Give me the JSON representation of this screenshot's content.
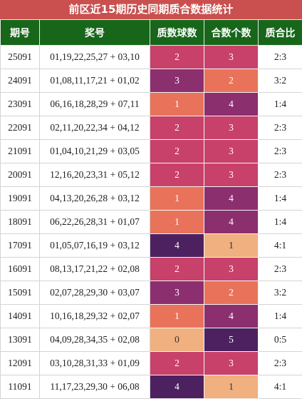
{
  "title": "前区近15期历史同期质合数据统计",
  "table": {
    "columns": [
      "期号",
      "奖号",
      "质数球数",
      "合数个数",
      "质合比"
    ],
    "rows": [
      [
        "25091",
        "01,19,22,25,27 + 03,10",
        2,
        3,
        "2:3"
      ],
      [
        "24091",
        "01,08,11,17,21 + 01,02",
        3,
        2,
        "3:2"
      ],
      [
        "23091",
        "06,16,18,28,29 + 07,11",
        1,
        4,
        "1:4"
      ],
      [
        "22091",
        "02,11,20,22,34 + 04,12",
        2,
        3,
        "2:3"
      ],
      [
        "21091",
        "01,04,10,21,29 + 03,05",
        2,
        3,
        "2:3"
      ],
      [
        "20091",
        "12,16,20,23,31 + 05,12",
        2,
        3,
        "2:3"
      ],
      [
        "19091",
        "04,13,20,26,28 + 03,12",
        1,
        4,
        "1:4"
      ],
      [
        "18091",
        "06,22,26,28,31 + 01,07",
        1,
        4,
        "1:4"
      ],
      [
        "17091",
        "01,05,07,16,19 + 03,12",
        4,
        1,
        "4:1"
      ],
      [
        "16091",
        "08,13,17,21,22 + 02,08",
        2,
        3,
        "2:3"
      ],
      [
        "15091",
        "02,07,28,29,30 + 03,07",
        3,
        2,
        "3:2"
      ],
      [
        "14091",
        "10,16,18,29,32 + 02,07",
        1,
        4,
        "1:4"
      ],
      [
        "13091",
        "04,09,28,34,35 + 02,08",
        0,
        5,
        "0:5"
      ],
      [
        "12091",
        "03,10,28,31,33 + 01,09",
        2,
        3,
        "2:3"
      ],
      [
        "11091",
        "11,17,23,29,30 + 06,08",
        4,
        1,
        "4:1"
      ]
    ]
  }
}
